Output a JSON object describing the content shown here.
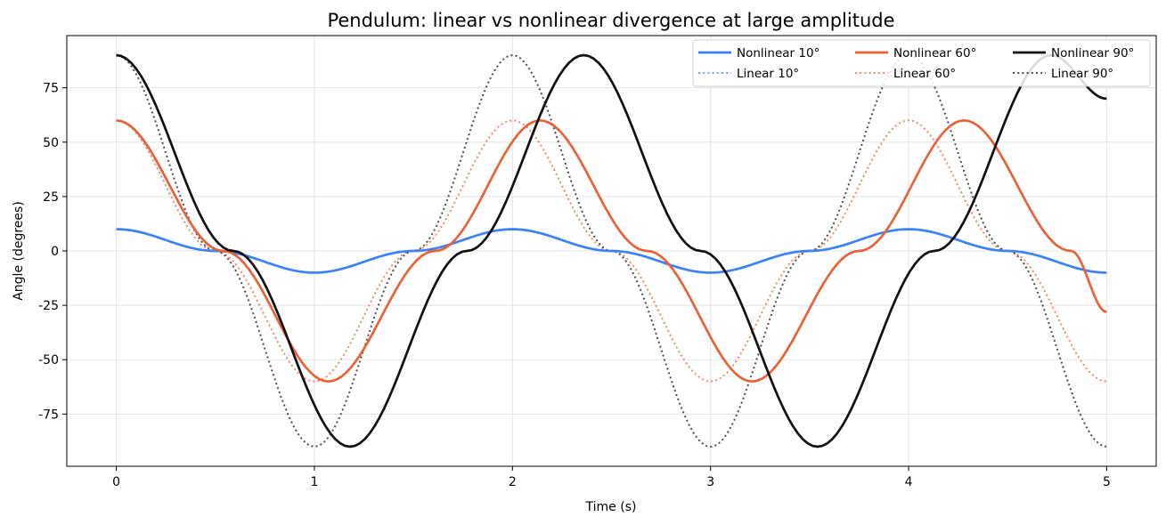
{
  "chart_data": {
    "type": "line",
    "title": "Pendulum: linear vs nonlinear divergence at large amplitude",
    "xlabel": "Time (s)",
    "ylabel": "Angle (degrees)",
    "xlim": [
      -0.25,
      5.25
    ],
    "ylim": [
      -99,
      99
    ],
    "xticks": [
      0,
      1,
      2,
      3,
      4,
      5
    ],
    "xtick_labels": [
      "0",
      "1",
      "2",
      "3",
      "4",
      "5"
    ],
    "yticks": [
      -75,
      -50,
      -25,
      0,
      25,
      50,
      75
    ],
    "ytick_labels": [
      "-75",
      "-50",
      "-25",
      "0",
      "25",
      "50",
      "75"
    ],
    "grid": true,
    "legend": {
      "position": "top-right",
      "columns": 3
    },
    "series": [
      {
        "name": "Nonlinear 10°",
        "style": "solid",
        "color": "#3b82f6",
        "x": [
          0,
          0.5,
          1.0,
          1.5,
          2.0,
          2.5,
          3.0,
          3.5,
          4.0,
          4.5,
          5.0
        ],
        "y": [
          10,
          0,
          -10,
          0,
          10,
          0,
          -10,
          0,
          10,
          0,
          -10
        ]
      },
      {
        "name": "Linear 10°",
        "style": "dotted",
        "color": "#3b82f6",
        "x": [
          0,
          0.5,
          1.0,
          1.5,
          2.0,
          2.5,
          3.0,
          3.5,
          4.0,
          4.5,
          5.0
        ],
        "y": [
          10,
          0,
          -10,
          0,
          10,
          0,
          -10,
          0,
          10,
          0,
          -10
        ]
      },
      {
        "name": "Nonlinear 60°",
        "style": "solid",
        "color": "#e8623a",
        "x": [
          0,
          0.54,
          1.07,
          1.61,
          2.14,
          2.68,
          3.21,
          3.75,
          4.28,
          4.82,
          5.0
        ],
        "y": [
          60,
          0,
          -60,
          0,
          60,
          0,
          -60,
          0,
          60,
          0,
          -28
        ]
      },
      {
        "name": "Linear 60°",
        "style": "dotted",
        "color": "#e8623a",
        "x": [
          0,
          0.5,
          1.0,
          1.5,
          2.0,
          2.5,
          3.0,
          3.5,
          4.0,
          4.5,
          5.0
        ],
        "y": [
          60,
          0,
          -60,
          0,
          60,
          0,
          -60,
          0,
          60,
          0,
          -60
        ]
      },
      {
        "name": "Nonlinear 90°",
        "style": "solid",
        "color": "#111111",
        "x": [
          0,
          0.59,
          1.18,
          1.77,
          2.36,
          2.95,
          3.54,
          4.13,
          4.72,
          5.0
        ],
        "y": [
          90,
          0,
          -90,
          0,
          90,
          0,
          -90,
          0,
          90,
          70
        ]
      },
      {
        "name": "Linear 90°",
        "style": "dotted",
        "color": "#444444",
        "x": [
          0,
          0.5,
          1.0,
          1.5,
          2.0,
          2.5,
          3.0,
          3.5,
          4.0,
          4.5,
          5.0
        ],
        "y": [
          90,
          0,
          -90,
          0,
          90,
          0,
          -90,
          0,
          90,
          0,
          -90
        ]
      }
    ]
  }
}
